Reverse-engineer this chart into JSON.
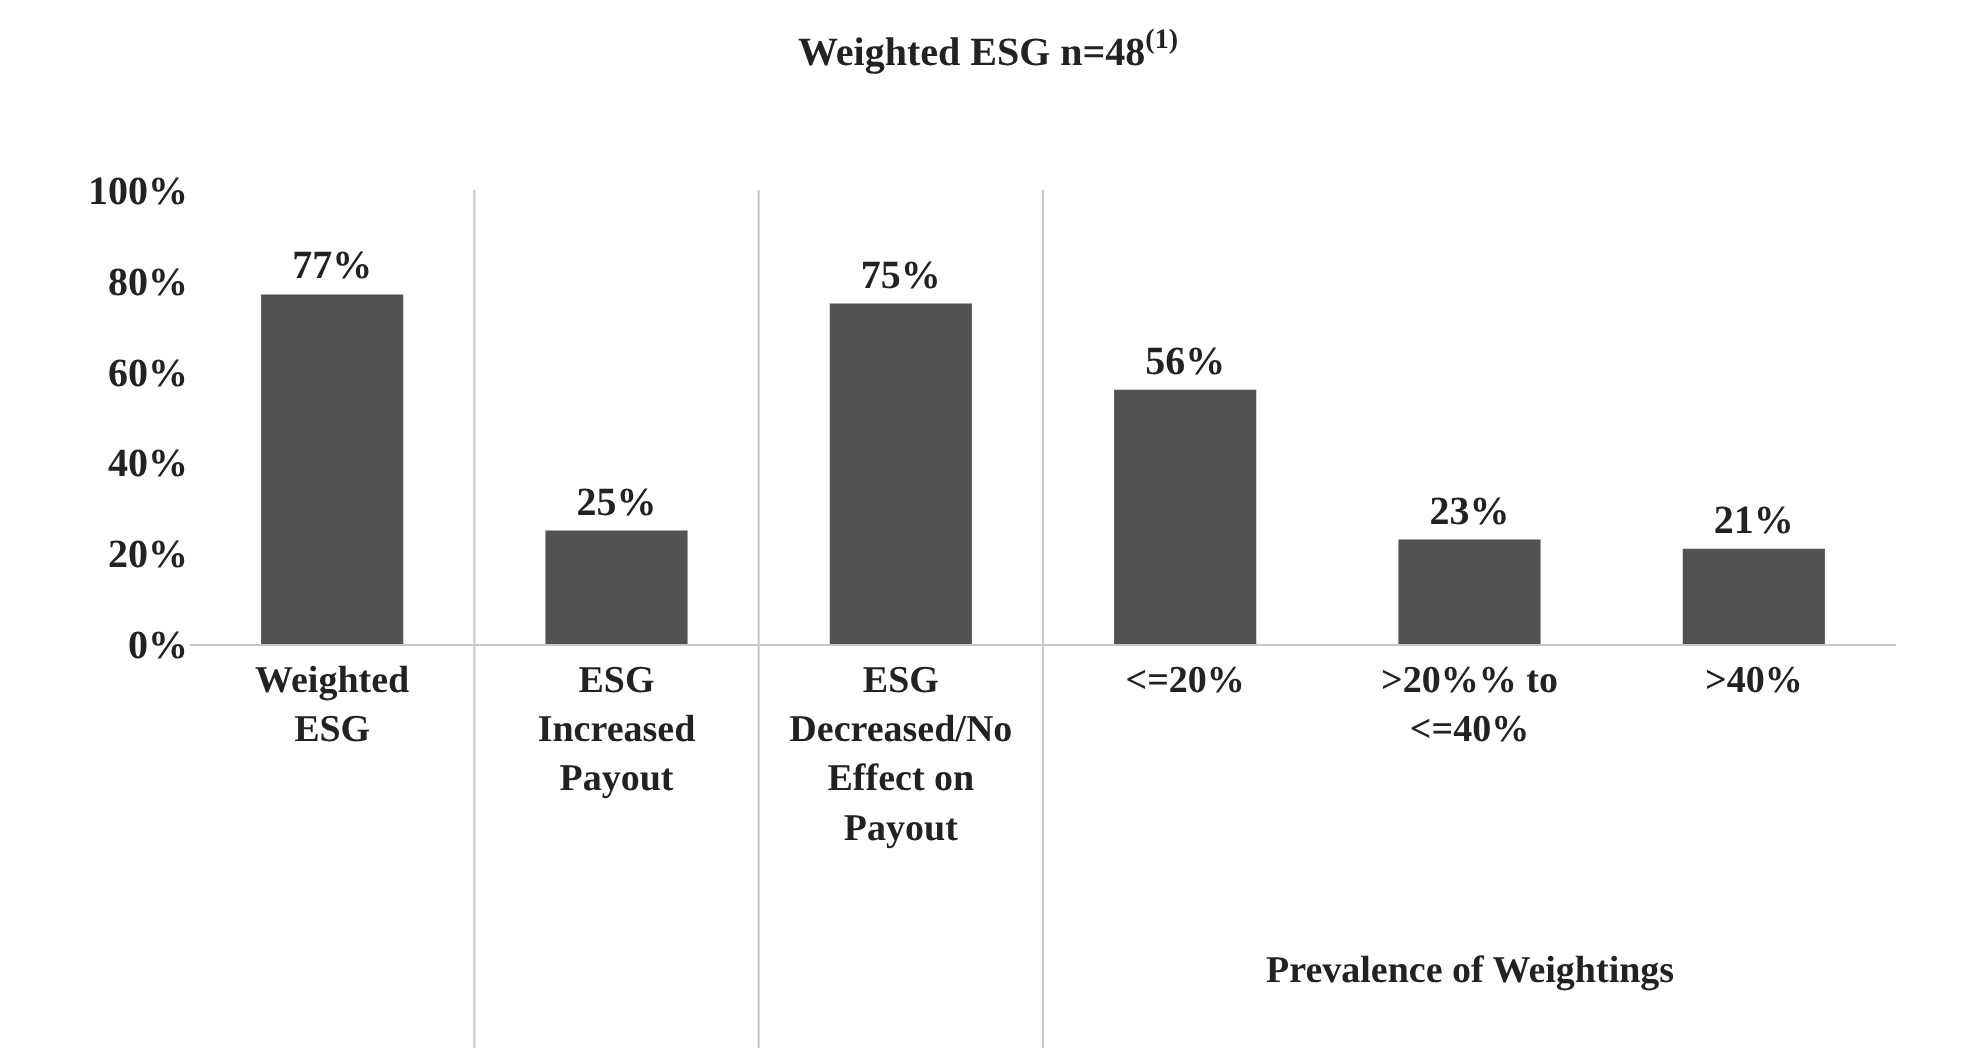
{
  "chart_data": {
    "type": "bar",
    "title": "Weighted ESG n=48$^{(1)}$",
    "categories": [
      "Weighted ESG",
      "ESG Increased Payout",
      "ESG Decreased/No Effect on Payout",
      "<=20%",
      ">20%% to <=40%",
      ">40%"
    ],
    "values": [
      77,
      25,
      75,
      56,
      23,
      21
    ],
    "color": "#525252",
    "ylim": [
      0,
      100
    ],
    "yticks": [
      {
        "value": 0,
        "label": "0%"
      },
      {
        "value": 20,
        "label": "20%"
      },
      {
        "value": 40,
        "label": "40%"
      },
      {
        "value": 60,
        "label": "60%"
      },
      {
        "value": 80,
        "label": "80%"
      },
      {
        "value": 100,
        "label": "100%"
      }
    ],
    "value_labels": [
      "77%",
      "25%",
      "75%",
      "56%",
      "23%",
      "21%"
    ],
    "annotations": [
      "Prevalence of Weightings"
    ],
    "grid": false
  }
}
